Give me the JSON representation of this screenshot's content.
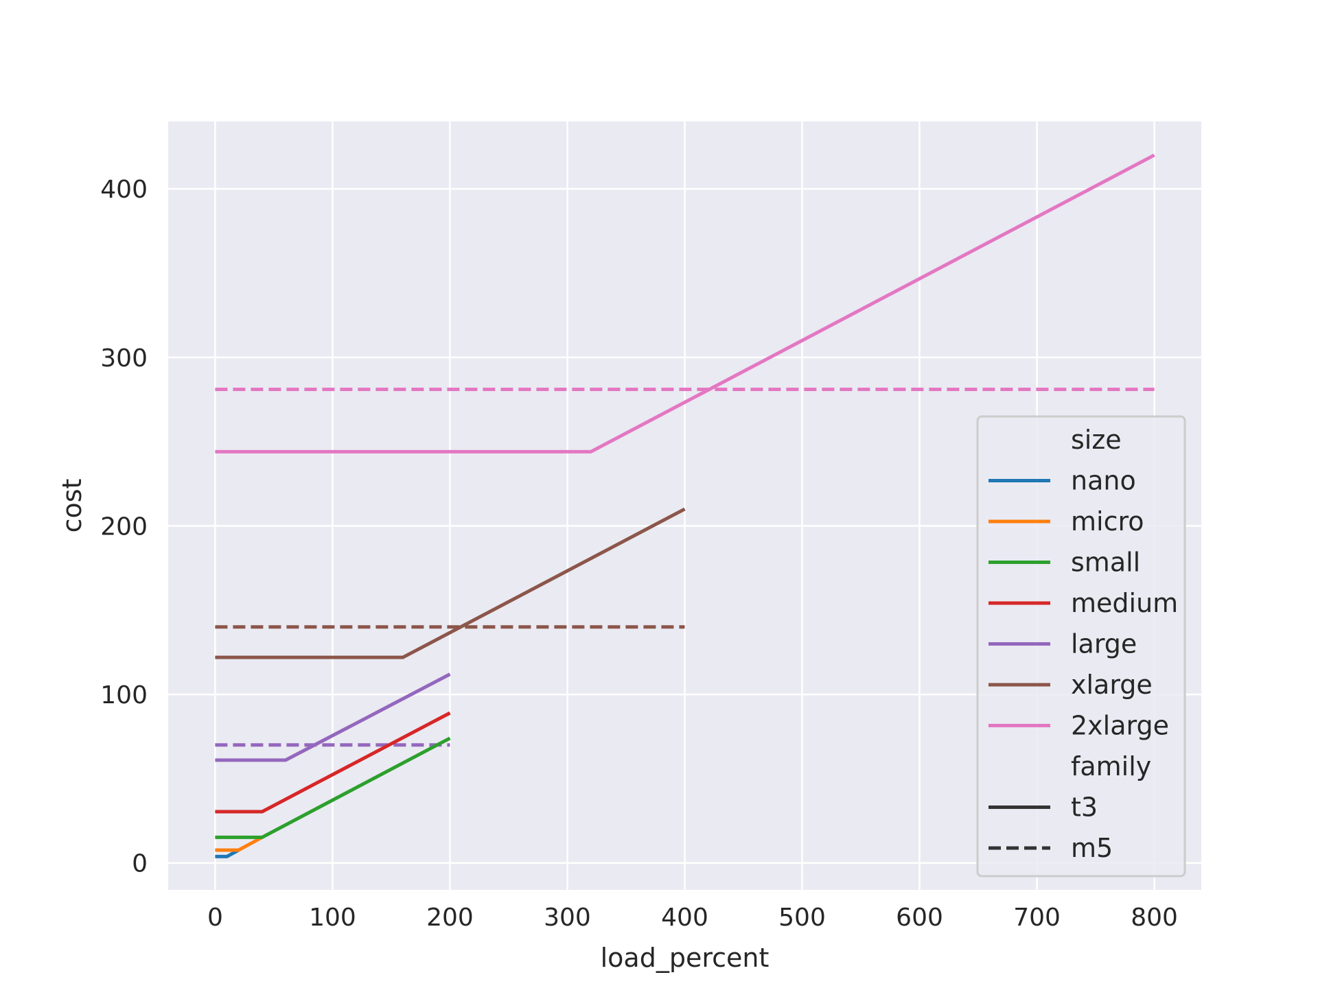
{
  "chart_data": {
    "type": "line",
    "title": "",
    "xlabel": "load_percent",
    "ylabel": "cost",
    "xlim": [
      -40,
      840
    ],
    "ylim": [
      -16,
      440
    ],
    "xticks": [
      0,
      100,
      200,
      300,
      400,
      500,
      600,
      700,
      800
    ],
    "yticks": [
      0,
      100,
      200,
      300,
      400
    ],
    "grid": true,
    "background": "#EAEAF2",
    "legend": {
      "placement": "lower-right",
      "size_title": "size",
      "family_title": "family",
      "sizes": [
        {
          "name": "nano",
          "color": "#1f77b4"
        },
        {
          "name": "micro",
          "color": "#ff7f0e"
        },
        {
          "name": "small",
          "color": "#2ca02c"
        },
        {
          "name": "medium",
          "color": "#d62728"
        },
        {
          "name": "large",
          "color": "#9467bd"
        },
        {
          "name": "xlarge",
          "color": "#8c564b"
        },
        {
          "name": "2xlarge",
          "color": "#e377c2"
        }
      ],
      "families": [
        {
          "name": "t3",
          "style": "solid"
        },
        {
          "name": "m5",
          "style": "dashed"
        }
      ]
    },
    "series": [
      {
        "size": "nano",
        "family": "t3",
        "color": "#1f77b4",
        "dashed": false,
        "x": [
          0,
          10,
          20
        ],
        "y": [
          3.8,
          3.8,
          7.6
        ]
      },
      {
        "size": "micro",
        "family": "t3",
        "color": "#ff7f0e",
        "dashed": false,
        "x": [
          0,
          20,
          40
        ],
        "y": [
          7.6,
          7.6,
          15.2
        ]
      },
      {
        "size": "small",
        "family": "t3",
        "color": "#2ca02c",
        "dashed": false,
        "x": [
          0,
          40,
          200
        ],
        "y": [
          15.2,
          15.2,
          74
        ]
      },
      {
        "size": "medium",
        "family": "t3",
        "color": "#d62728",
        "dashed": false,
        "x": [
          0,
          40,
          200
        ],
        "y": [
          30.4,
          30.4,
          89
        ]
      },
      {
        "size": "large",
        "family": "t3",
        "color": "#9467bd",
        "dashed": false,
        "x": [
          0,
          60,
          200
        ],
        "y": [
          61,
          61,
          112
        ]
      },
      {
        "size": "xlarge",
        "family": "t3",
        "color": "#8c564b",
        "dashed": false,
        "x": [
          0,
          160,
          400
        ],
        "y": [
          122,
          122,
          210
        ]
      },
      {
        "size": "2xlarge",
        "family": "t3",
        "color": "#e377c2",
        "dashed": false,
        "x": [
          0,
          320,
          800
        ],
        "y": [
          244,
          244,
          420
        ]
      },
      {
        "size": "large",
        "family": "m5",
        "color": "#9467bd",
        "dashed": true,
        "x": [
          0,
          200
        ],
        "y": [
          70,
          70
        ]
      },
      {
        "size": "xlarge",
        "family": "m5",
        "color": "#8c564b",
        "dashed": true,
        "x": [
          0,
          400
        ],
        "y": [
          140,
          140
        ]
      },
      {
        "size": "2xlarge",
        "family": "m5",
        "color": "#e377c2",
        "dashed": true,
        "x": [
          0,
          800
        ],
        "y": [
          281,
          281
        ]
      }
    ]
  }
}
